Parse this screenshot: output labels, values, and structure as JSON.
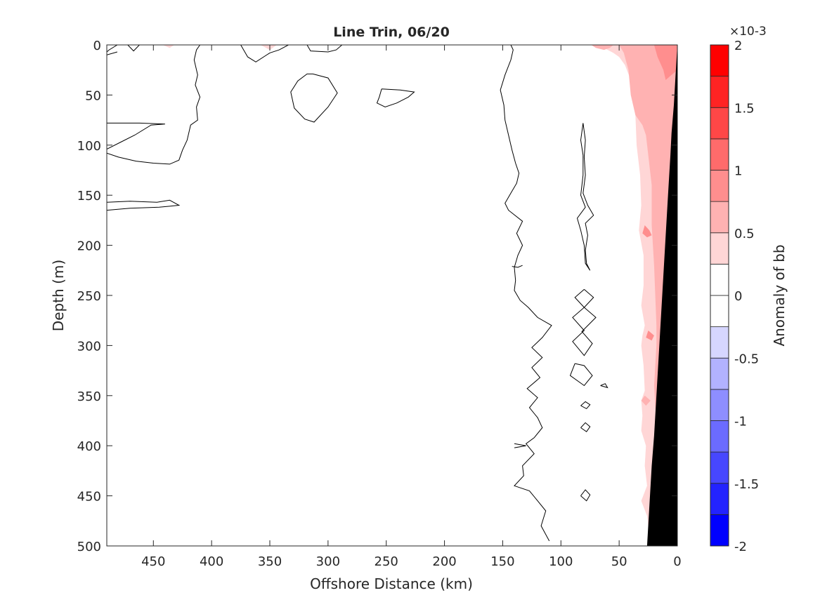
{
  "chart_data": {
    "type": "contour",
    "title": "Line Trin, 06/20",
    "xlabel": "Offshore Distance (km)",
    "ylabel": "Depth (m)",
    "xlim": [
      490,
      0
    ],
    "ylim": [
      0,
      500
    ],
    "x_reversed": true,
    "y_reversed": true,
    "x_ticks": [
      450,
      400,
      350,
      300,
      250,
      200,
      150,
      100,
      50,
      0
    ],
    "y_ticks": [
      0,
      50,
      100,
      150,
      200,
      250,
      300,
      350,
      400,
      450,
      500
    ],
    "colorbar": {
      "label": "Anomaly of bb",
      "exponent": "×10-3",
      "range": [
        -2,
        2
      ],
      "tick_values": [
        2,
        1.5,
        1,
        0.5,
        0,
        -0.5,
        -1,
        -1.5,
        -2
      ],
      "tick_labels": [
        "2",
        "1.5",
        "1",
        "0.5",
        "0",
        "-0.5",
        "-1",
        "-1.5",
        "-2"
      ],
      "levels": [
        -2,
        -1.75,
        -1.5,
        -1.25,
        -1,
        -0.75,
        -0.5,
        -0.25,
        0,
        0.25,
        0.5,
        0.75,
        1,
        1.25,
        1.5,
        1.75,
        2
      ],
      "colors": [
        "#0000ff",
        "#2323ff",
        "#4747ff",
        "#6b6bff",
        "#8e8eff",
        "#b2b2ff",
        "#d6d6ff",
        "#ffffff",
        "#ffffff",
        "#ffd6d6",
        "#ffb2b2",
        "#ff8e8e",
        "#ff6b6b",
        "#ff4747",
        "#ff2323",
        "#ff0000"
      ]
    },
    "zero_contours": [
      [
        [
          490,
          10
        ],
        [
          481,
          7
        ]
      ],
      [
        [
          481,
          0
        ],
        [
          488,
          5
        ],
        [
          490,
          7
        ]
      ],
      [
        [
          472,
          0
        ],
        [
          467,
          6
        ],
        [
          462,
          0
        ]
      ],
      [
        [
          490,
          104
        ],
        [
          478,
          97
        ],
        [
          466,
          90
        ],
        [
          452,
          80
        ],
        [
          440,
          79
        ],
        [
          462,
          78
        ],
        [
          478,
          78
        ],
        [
          490,
          78
        ]
      ],
      [
        [
          490,
          108
        ],
        [
          480,
          112
        ],
        [
          465,
          116
        ],
        [
          450,
          118
        ],
        [
          436,
          119
        ],
        [
          428,
          115
        ],
        [
          425,
          105
        ],
        [
          421,
          95
        ],
        [
          418,
          80
        ],
        [
          412,
          75
        ],
        [
          413,
          62
        ],
        [
          410,
          52
        ],
        [
          414,
          40
        ],
        [
          412,
          30
        ],
        [
          415,
          15
        ],
        [
          413,
          5
        ],
        [
          410,
          0
        ]
      ],
      [
        [
          490,
          157
        ],
        [
          470,
          156
        ],
        [
          447,
          157
        ],
        [
          436,
          155
        ],
        [
          428,
          160
        ],
        [
          436,
          161
        ],
        [
          445,
          162
        ],
        [
          470,
          163
        ],
        [
          490,
          165
        ]
      ],
      [
        [
          375,
          0
        ],
        [
          369,
          12
        ],
        [
          362,
          17
        ],
        [
          350,
          8
        ],
        [
          342,
          5
        ],
        [
          334,
          0
        ]
      ],
      [
        [
          318,
          0
        ],
        [
          315,
          6
        ],
        [
          300,
          7
        ],
        [
          293,
          5
        ],
        [
          288,
          0
        ]
      ],
      [
        [
          313,
          29
        ],
        [
          300,
          33
        ],
        [
          292,
          48
        ],
        [
          300,
          62
        ],
        [
          312,
          77
        ],
        [
          320,
          74
        ],
        [
          329,
          63
        ],
        [
          332,
          47
        ],
        [
          326,
          36
        ],
        [
          318,
          29
        ],
        [
          313,
          29
        ]
      ],
      [
        [
          254,
          44
        ],
        [
          238,
          45
        ],
        [
          226,
          47
        ],
        [
          231,
          52
        ],
        [
          241,
          58
        ],
        [
          251,
          62
        ],
        [
          258,
          58
        ],
        [
          256,
          52
        ],
        [
          254,
          44
        ]
      ],
      [
        [
          110,
          495
        ],
        [
          117,
          480
        ],
        [
          113,
          465
        ],
        [
          120,
          455
        ],
        [
          127,
          445
        ],
        [
          140,
          440
        ],
        [
          132,
          430
        ],
        [
          133,
          420
        ],
        [
          123,
          408
        ],
        [
          130,
          398
        ],
        [
          123,
          392
        ],
        [
          116,
          382
        ],
        [
          120,
          372
        ],
        [
          127,
          362
        ],
        [
          120,
          352
        ],
        [
          129,
          343
        ],
        [
          118,
          332
        ],
        [
          125,
          322
        ],
        [
          116,
          312
        ],
        [
          125,
          302
        ],
        [
          116,
          292
        ],
        [
          108,
          280
        ],
        [
          120,
          272
        ],
        [
          128,
          262
        ],
        [
          135,
          255
        ],
        [
          140,
          245
        ],
        [
          139,
          235
        ],
        [
          140,
          222
        ],
        [
          137,
          210
        ],
        [
          133,
          200
        ],
        [
          138,
          188
        ],
        [
          133,
          176
        ],
        [
          145,
          165
        ],
        [
          148,
          158
        ],
        [
          143,
          148
        ],
        [
          138,
          138
        ],
        [
          136,
          128
        ],
        [
          139,
          118
        ],
        [
          142,
          105
        ],
        [
          145,
          90
        ],
        [
          148,
          75
        ],
        [
          149,
          60
        ],
        [
          152,
          45
        ],
        [
          148,
          30
        ],
        [
          143,
          15
        ],
        [
          141,
          5
        ],
        [
          143,
          0
        ]
      ],
      [
        [
          142,
          221
        ],
        [
          137,
          222
        ],
        [
          133,
          220
        ]
      ],
      [
        [
          140,
          398
        ],
        [
          130,
          400
        ],
        [
          140,
          402
        ]
      ],
      [
        [
          81,
          78
        ],
        [
          79,
          95
        ],
        [
          80,
          112
        ],
        [
          79,
          130
        ],
        [
          81,
          148
        ],
        [
          77,
          160
        ],
        [
          72,
          170
        ],
        [
          79,
          178
        ],
        [
          77,
          190
        ],
        [
          79,
          205
        ],
        [
          78,
          218
        ],
        [
          75,
          225
        ],
        [
          79,
          218
        ],
        [
          80,
          200
        ],
        [
          83,
          185
        ],
        [
          86,
          173
        ],
        [
          79,
          162
        ],
        [
          83,
          150
        ],
        [
          81,
          130
        ],
        [
          81,
          110
        ],
        [
          83,
          95
        ],
        [
          81,
          78
        ]
      ],
      [
        [
          80,
          244
        ],
        [
          88,
          252
        ],
        [
          80,
          262
        ],
        [
          90,
          272
        ],
        [
          80,
          285
        ],
        [
          90,
          296
        ],
        [
          80,
          310
        ],
        [
          73,
          298
        ],
        [
          82,
          286
        ],
        [
          70,
          272
        ],
        [
          80,
          262
        ],
        [
          72,
          252
        ],
        [
          80,
          244
        ]
      ],
      [
        [
          88,
          318
        ],
        [
          92,
          330
        ],
        [
          80,
          340
        ],
        [
          73,
          330
        ],
        [
          80,
          320
        ],
        [
          88,
          318
        ]
      ],
      [
        [
          83,
          360
        ],
        [
          78,
          363
        ],
        [
          75,
          359
        ],
        [
          79,
          356
        ],
        [
          83,
          360
        ]
      ],
      [
        [
          83,
          382
        ],
        [
          78,
          386
        ],
        [
          75,
          381
        ],
        [
          79,
          377
        ],
        [
          83,
          382
        ]
      ],
      [
        [
          83,
          450
        ],
        [
          78,
          455
        ],
        [
          75,
          449
        ],
        [
          79,
          444
        ],
        [
          83,
          450
        ]
      ],
      [
        [
          66,
          340
        ],
        [
          60,
          342
        ],
        [
          62,
          338
        ],
        [
          66,
          340
        ]
      ]
    ],
    "positive_regions": [
      {
        "level": 0.25,
        "points": [
          [
            0,
            0
          ],
          [
            70,
            0
          ],
          [
            63,
            3
          ],
          [
            55,
            8
          ],
          [
            50,
            12
          ],
          [
            45,
            20
          ],
          [
            40,
            35
          ],
          [
            38,
            50
          ],
          [
            36,
            70
          ],
          [
            35,
            100
          ],
          [
            32,
            130
          ],
          [
            31,
            160
          ],
          [
            33,
            185
          ],
          [
            29,
            210
          ],
          [
            29,
            240
          ],
          [
            31,
            260
          ],
          [
            28,
            280
          ],
          [
            30,
            290
          ],
          [
            31,
            300
          ],
          [
            29,
            320
          ],
          [
            28,
            345
          ],
          [
            31,
            355
          ],
          [
            30,
            370
          ],
          [
            31,
            385
          ],
          [
            27,
            400
          ],
          [
            28,
            420
          ],
          [
            26,
            440
          ],
          [
            31,
            455
          ],
          [
            26,
            470
          ],
          [
            24,
            490
          ],
          [
            25,
            500
          ],
          [
            0,
            500
          ]
        ]
      },
      {
        "level": 0.5,
        "points": [
          [
            0,
            0
          ],
          [
            50,
            0
          ],
          [
            46,
            8
          ],
          [
            42,
            25
          ],
          [
            40,
            50
          ],
          [
            36,
            70
          ],
          [
            30,
            80
          ],
          [
            27,
            90
          ],
          [
            22,
            140
          ],
          [
            22,
            180
          ],
          [
            20,
            220
          ],
          [
            18,
            280
          ],
          [
            18,
            300
          ],
          [
            20,
            340
          ],
          [
            18,
            380
          ],
          [
            20,
            420
          ],
          [
            20,
            500
          ],
          [
            0,
            500
          ]
        ]
      },
      {
        "level": 0.75,
        "points": [
          [
            0,
            0
          ],
          [
            20,
            0
          ],
          [
            17,
            12
          ],
          [
            12,
            25
          ],
          [
            10,
            35
          ],
          [
            5,
            30
          ],
          [
            0,
            25
          ]
        ]
      },
      {
        "level": 0.5,
        "points": [
          [
            74,
            0
          ],
          [
            70,
            3
          ],
          [
            63,
            5
          ],
          [
            58,
            3
          ],
          [
            55,
            0
          ]
        ]
      },
      {
        "level": 0.75,
        "points": [
          [
            28,
            180
          ],
          [
            24,
            185
          ],
          [
            22,
            190
          ],
          [
            26,
            192
          ],
          [
            30,
            188
          ]
        ]
      },
      {
        "level": 0.75,
        "points": [
          [
            25,
            285
          ],
          [
            20,
            290
          ],
          [
            22,
            295
          ],
          [
            27,
            292
          ]
        ]
      },
      {
        "level": 0.5,
        "points": [
          [
            28,
            350
          ],
          [
            23,
            355
          ],
          [
            27,
            360
          ],
          [
            31,
            355
          ]
        ]
      },
      {
        "level": 0.25,
        "points": [
          [
            442,
            0
          ],
          [
            432,
            0
          ],
          [
            436,
            3
          ]
        ]
      },
      {
        "level": 0.25,
        "points": [
          [
            358,
            0
          ],
          [
            350,
            5
          ],
          [
            344,
            0
          ]
        ]
      }
    ],
    "bathymetry": [
      [
        0,
        0
      ],
      [
        0,
        500
      ],
      [
        26,
        500
      ],
      [
        24,
        460
      ],
      [
        22,
        420
      ],
      [
        20,
        390
      ],
      [
        18,
        350
      ],
      [
        16,
        310
      ],
      [
        14,
        270
      ],
      [
        12,
        230
      ],
      [
        10,
        190
      ],
      [
        8,
        150
      ],
      [
        6,
        110
      ],
      [
        5,
        88
      ],
      [
        3,
        60
      ],
      [
        1,
        20
      ]
    ]
  }
}
